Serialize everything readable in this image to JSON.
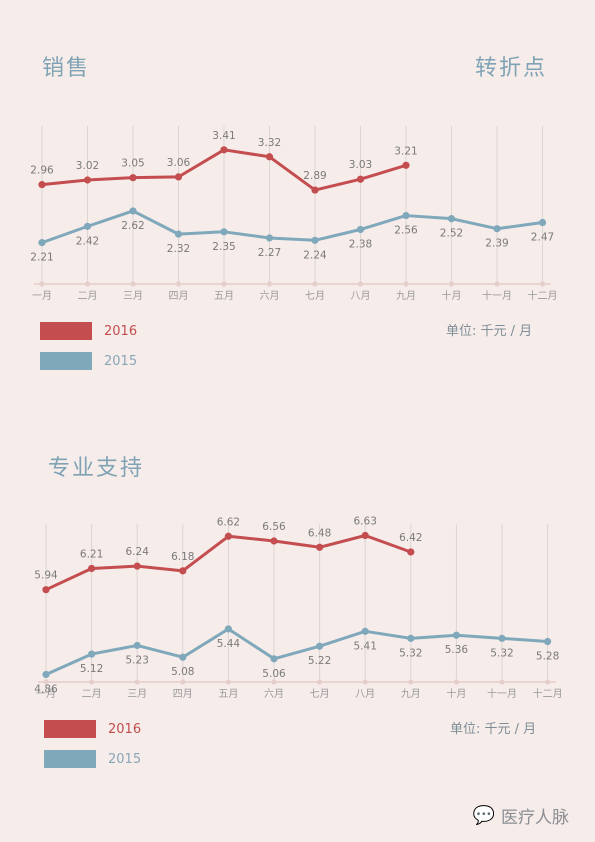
{
  "section1": {
    "title": "销售",
    "corner": "转折点",
    "unit_label": "单位:  千元 / 月"
  },
  "section2": {
    "title": "专业支持",
    "unit_label": "单位:  千元 / 月"
  },
  "legend": {
    "label_2016": "2016",
    "label_2015": "2015"
  },
  "colors": {
    "red": "#c44d4f",
    "blue": "#80a8bb",
    "grid": "#dcd6d3",
    "axis": "#e3c6c2",
    "text": "#7a7a7a"
  },
  "watermark": {
    "text": "医疗人脉",
    "icon": "wechat-icon"
  },
  "chart_data": [
    {
      "type": "line",
      "categories": [
        "一月",
        "二月",
        "三月",
        "四月",
        "五月",
        "六月",
        "七月",
        "八月",
        "九月",
        "十月",
        "十一月",
        "十二月"
      ],
      "series": [
        {
          "name": "2016",
          "values": [
            2.96,
            3.02,
            3.05,
            3.06,
            3.41,
            3.32,
            2.89,
            3.03,
            3.21,
            null,
            null,
            null
          ]
        },
        {
          "name": "2015",
          "values": [
            2.21,
            2.42,
            2.62,
            2.32,
            2.35,
            2.27,
            2.24,
            2.38,
            2.56,
            2.52,
            2.39,
            2.47
          ]
        }
      ],
      "ylim": [
        2.05,
        3.55
      ]
    },
    {
      "type": "line",
      "categories": [
        "一月",
        "二月",
        "三月",
        "四月",
        "五月",
        "六月",
        "七月",
        "八月",
        "九月",
        "十月",
        "十一月",
        "十二月"
      ],
      "series": [
        {
          "name": "2016",
          "values": [
            5.94,
            6.21,
            6.24,
            6.18,
            6.62,
            6.56,
            6.48,
            6.63,
            6.42,
            null,
            null,
            null
          ]
        },
        {
          "name": "2015",
          "values": [
            4.86,
            5.12,
            5.23,
            5.08,
            5.44,
            5.06,
            5.22,
            5.41,
            5.32,
            5.36,
            5.32,
            5.28
          ]
        }
      ],
      "ylim": [
        4.79,
        6.7
      ]
    }
  ]
}
